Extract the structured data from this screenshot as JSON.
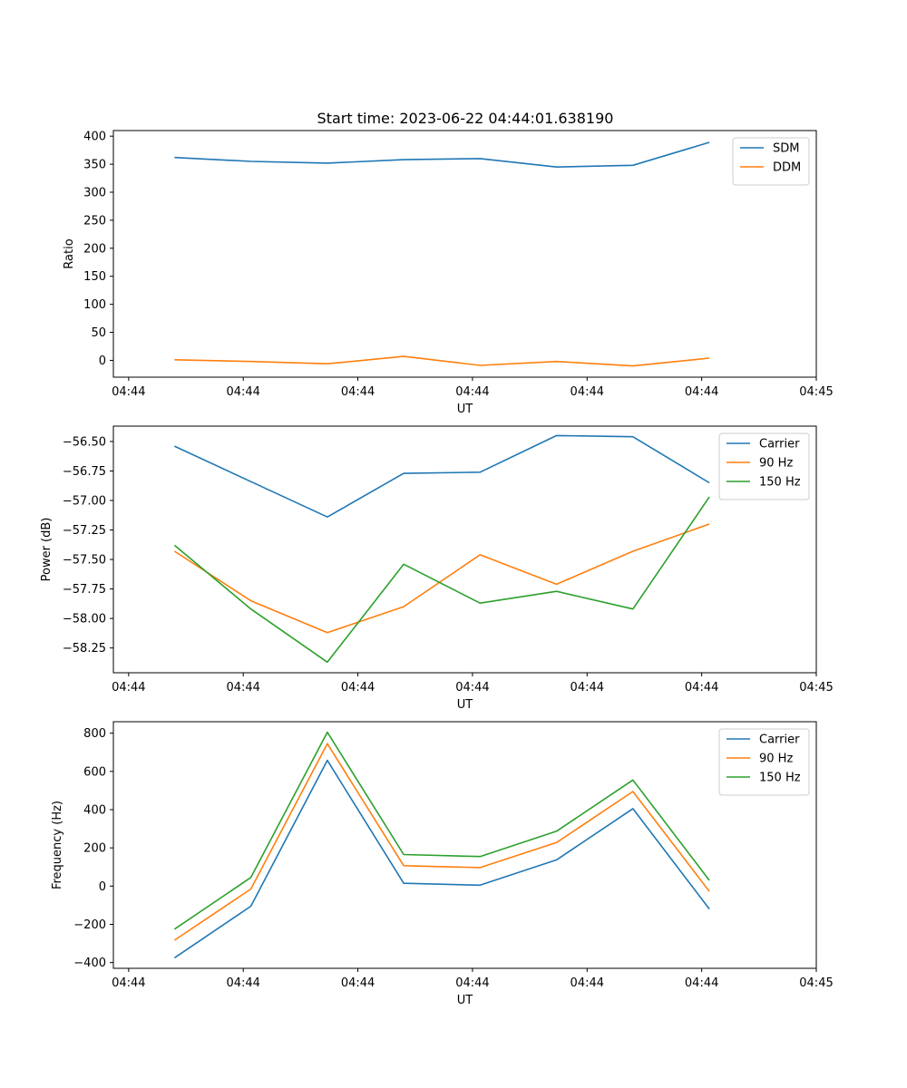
{
  "figure": {
    "title": "Start time: 2023-06-22 04:44:01.638190"
  },
  "chart_data": [
    {
      "type": "line",
      "xlabel": "UT",
      "ylabel": "Ratio",
      "x": [
        1,
        2,
        3,
        4,
        5,
        6,
        7,
        8
      ],
      "xlim": [
        0.2,
        9.4
      ],
      "ylim": [
        -30,
        410
      ],
      "xticks": [
        0.4,
        1.9,
        3.4,
        4.9,
        6.4,
        7.9,
        9.4
      ],
      "xtick_labels": [
        "04:44",
        "04:44",
        "04:44",
        "04:44",
        "04:44",
        "04:44",
        "04:45"
      ],
      "yticks": [
        0,
        50,
        100,
        150,
        200,
        250,
        300,
        350,
        400
      ],
      "ytick_labels": [
        "0",
        "50",
        "100",
        "150",
        "200",
        "250",
        "300",
        "350",
        "400"
      ],
      "legend": "top-right",
      "series": [
        {
          "name": "SDM",
          "color": "#1f77b4",
          "values": [
            362,
            355,
            352,
            358,
            360,
            345,
            348,
            389
          ]
        },
        {
          "name": "DDM",
          "color": "#ff7f0e",
          "values": [
            1,
            -2,
            -6,
            7,
            -9,
            -2,
            -10,
            4
          ]
        }
      ]
    },
    {
      "type": "line",
      "xlabel": "UT",
      "ylabel": "Power (dB)",
      "x": [
        1,
        2,
        3,
        4,
        5,
        6,
        7,
        8
      ],
      "xlim": [
        0.2,
        9.4
      ],
      "ylim": [
        -58.46,
        -56.37
      ],
      "xticks": [
        0.4,
        1.9,
        3.4,
        4.9,
        6.4,
        7.9,
        9.4
      ],
      "xtick_labels": [
        "04:44",
        "04:44",
        "04:44",
        "04:44",
        "04:44",
        "04:44",
        "04:45"
      ],
      "yticks": [
        -58.25,
        -58.0,
        -57.75,
        -57.5,
        -57.25,
        -57.0,
        -56.75,
        -56.5
      ],
      "ytick_labels": [
        "−58.25",
        "−58.00",
        "−57.75",
        "−57.50",
        "−57.25",
        "−57.00",
        "−56.75",
        "−56.50"
      ],
      "legend": "top-right",
      "series": [
        {
          "name": "Carrier",
          "color": "#1f77b4",
          "values": [
            -56.54,
            -56.84,
            -57.14,
            -56.77,
            -56.76,
            -56.45,
            -56.46,
            -56.85
          ]
        },
        {
          "name": "90 Hz",
          "color": "#ff7f0e",
          "values": [
            -57.43,
            -57.85,
            -58.12,
            -57.9,
            -57.46,
            -57.71,
            -57.43,
            -57.2
          ]
        },
        {
          "name": "150 Hz",
          "color": "#2ca02c",
          "values": [
            -57.38,
            -57.92,
            -58.37,
            -57.54,
            -57.87,
            -57.77,
            -57.92,
            -56.97
          ]
        }
      ]
    },
    {
      "type": "line",
      "xlabel": "UT",
      "ylabel": "Frequency (Hz)",
      "x": [
        1,
        2,
        3,
        4,
        5,
        6,
        7,
        8
      ],
      "xlim": [
        0.2,
        9.4
      ],
      "ylim": [
        -430,
        860
      ],
      "xticks": [
        0.4,
        1.9,
        3.4,
        4.9,
        6.4,
        7.9,
        9.4
      ],
      "xtick_labels": [
        "04:44",
        "04:44",
        "04:44",
        "04:44",
        "04:44",
        "04:44",
        "04:45"
      ],
      "yticks": [
        -400,
        -200,
        0,
        200,
        400,
        600,
        800
      ],
      "ytick_labels": [
        "−400",
        "−200",
        "0",
        "200",
        "400",
        "600",
        "800"
      ],
      "legend": "top-right",
      "series": [
        {
          "name": "Carrier",
          "color": "#1f77b4",
          "values": [
            -375,
            -105,
            658,
            15,
            5,
            137,
            405,
            -120
          ]
        },
        {
          "name": "90 Hz",
          "color": "#ff7f0e",
          "values": [
            -283,
            -15,
            745,
            107,
            97,
            228,
            495,
            -28
          ]
        },
        {
          "name": "150 Hz",
          "color": "#2ca02c",
          "values": [
            -225,
            45,
            805,
            165,
            155,
            287,
            555,
            30
          ]
        }
      ]
    }
  ]
}
